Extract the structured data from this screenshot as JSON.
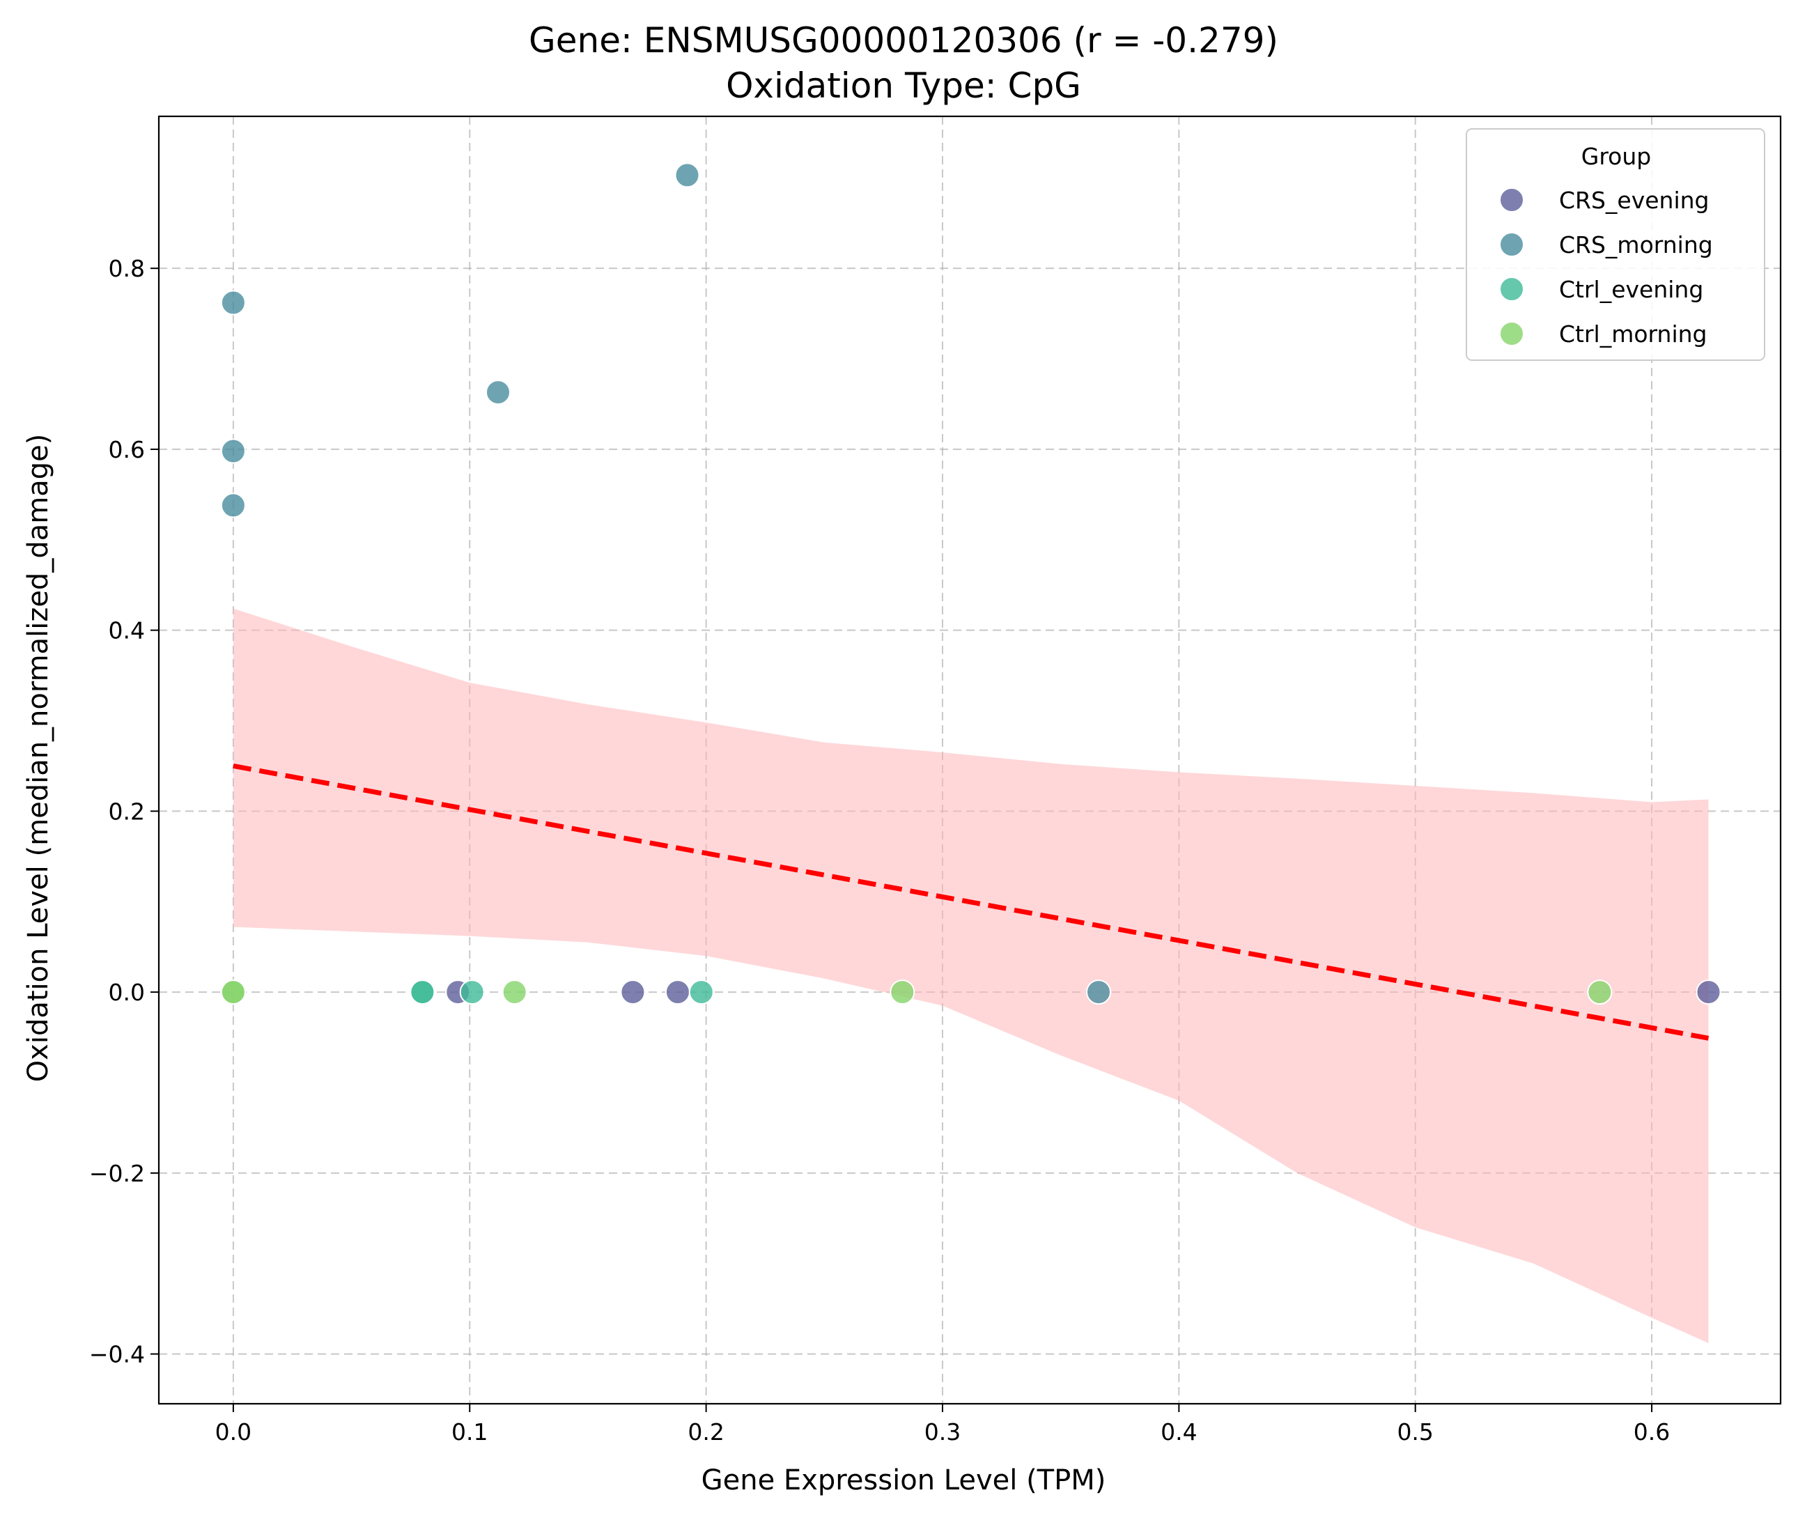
{
  "chart_data": {
    "type": "scatter",
    "title": "Gene: ENSMUSG00000120306 (r = -0.279)",
    "subtitle": "Oxidation Type: CpG",
    "xlabel": "Gene Expression Level (TPM)",
    "ylabel": "Oxidation Level (median_normalized_damage)",
    "xlim": [
      -0.0315,
      0.6545
    ],
    "ylim": [
      -0.455,
      0.968
    ],
    "xticks": [
      0.0,
      0.1,
      0.2,
      0.3,
      0.4,
      0.5,
      0.6
    ],
    "xtick_labels": [
      "0.0",
      "0.1",
      "0.2",
      "0.3",
      "0.4",
      "0.5",
      "0.6"
    ],
    "yticks": [
      -0.4,
      -0.2,
      0.0,
      0.2,
      0.4,
      0.6,
      0.8
    ],
    "ytick_labels": [
      "−0.4",
      "−0.2",
      "0.0",
      "0.2",
      "0.4",
      "0.6",
      "0.8"
    ],
    "grid": true,
    "legend_title": "Group",
    "legend_position": "top-right",
    "series": [
      {
        "name": "CRS_evening",
        "color": "#5e5f9a",
        "points": [
          [
            0.095,
            0.0
          ],
          [
            0.169,
            0.0
          ],
          [
            0.188,
            0.0
          ],
          [
            0.624,
            0.0
          ]
        ]
      },
      {
        "name": "CRS_morning",
        "color": "#4a8d9f",
        "points": [
          [
            0.0,
            0.762
          ],
          [
            0.0,
            0.598
          ],
          [
            0.0,
            0.538
          ],
          [
            0.112,
            0.663
          ],
          [
            0.192,
            0.903
          ],
          [
            0.366,
            0.0
          ]
        ]
      },
      {
        "name": "Ctrl_evening",
        "color": "#3fba97",
        "points": [
          [
            0.08,
            0.0
          ],
          [
            0.08,
            0.0
          ],
          [
            0.101,
            0.0
          ],
          [
            0.198,
            0.0
          ]
        ]
      },
      {
        "name": "Ctrl_morning",
        "color": "#86d46a",
        "points": [
          [
            0.0,
            0.0
          ],
          [
            0.0,
            0.0
          ],
          [
            0.119,
            0.0
          ],
          [
            0.283,
            0.0
          ],
          [
            0.578,
            0.0
          ]
        ]
      }
    ],
    "regression": {
      "color": "#ff0000",
      "style": "dashed",
      "start": [
        0.0,
        0.25
      ],
      "end": [
        0.624,
        -0.051
      ]
    },
    "confidence_band": {
      "color": "#ffb6b9",
      "x": [
        0.0,
        0.05,
        0.1,
        0.15,
        0.2,
        0.25,
        0.3,
        0.35,
        0.4,
        0.45,
        0.5,
        0.55,
        0.6,
        0.624
      ],
      "upper": [
        0.424,
        0.382,
        0.342,
        0.318,
        0.298,
        0.276,
        0.265,
        0.252,
        0.243,
        0.236,
        0.228,
        0.22,
        0.21,
        0.213
      ],
      "lower": [
        0.072,
        0.067,
        0.062,
        0.055,
        0.04,
        0.015,
        -0.015,
        -0.07,
        -0.12,
        -0.2,
        -0.26,
        -0.3,
        -0.36,
        -0.388
      ]
    }
  }
}
